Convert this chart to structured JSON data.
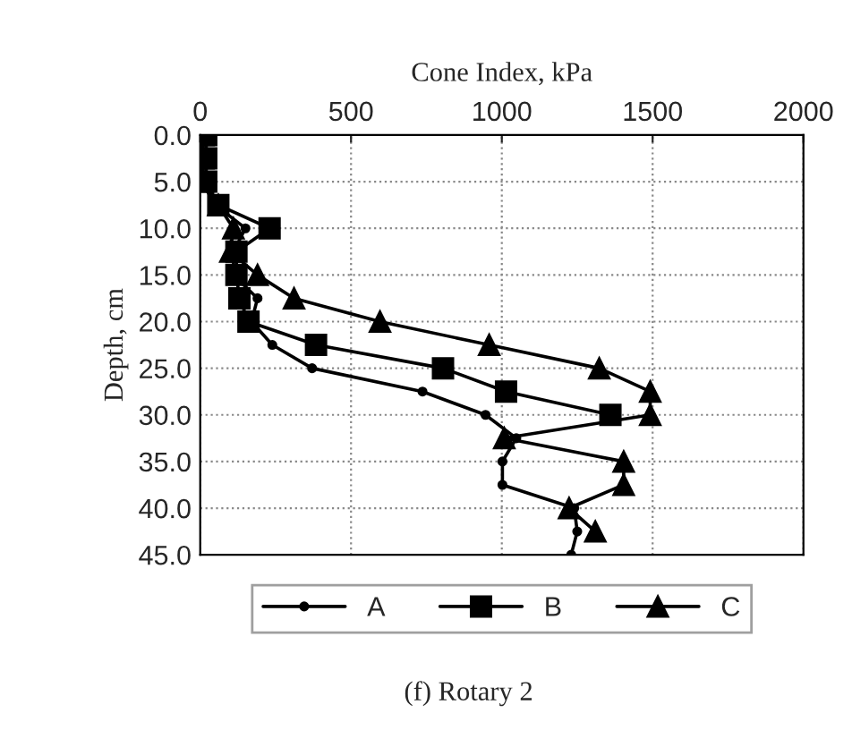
{
  "chart_data": {
    "type": "line",
    "xlabel": "Cone Index, kPa",
    "ylabel": "Depth, cm",
    "xlim": [
      0,
      2000
    ],
    "xticks": [
      0,
      500,
      1000,
      1500,
      2000
    ],
    "ylim": [
      45,
      0
    ],
    "yticks": [
      {
        "value": 0,
        "label": "0.0"
      },
      {
        "value": 5,
        "label": "5.0"
      },
      {
        "value": 10,
        "label": "10.0"
      },
      {
        "value": 15,
        "label": "15.0"
      },
      {
        "value": 20,
        "label": "20.0"
      },
      {
        "value": 25,
        "label": "25.0"
      },
      {
        "value": 30,
        "label": "30.0"
      },
      {
        "value": 35,
        "label": "35.0"
      },
      {
        "value": 40,
        "label": "40.0"
      },
      {
        "value": 45,
        "label": "45.0"
      }
    ],
    "grid": true,
    "legend": "bottom",
    "series": [
      {
        "name": "A",
        "color": "#000000",
        "marker": "circle",
        "x": [
          5,
          5,
          5,
          50,
          150,
          110,
          110,
          190,
          170,
          239,
          371,
          737,
          946,
          1048,
          1002,
          1002,
          1240,
          1250,
          1230
        ],
        "values": [
          0,
          2.5,
          5,
          7.5,
          10,
          12.5,
          15,
          17.5,
          20,
          22.5,
          25,
          27.5,
          30,
          32.5,
          35,
          37.5,
          40,
          42.5,
          45
        ]
      },
      {
        "name": "B",
        "color": "#000000",
        "marker": "square",
        "x": [
          20,
          20,
          20,
          60,
          230,
          120,
          120,
          130,
          160,
          384,
          805,
          1014,
          1360
        ],
        "values": [
          0,
          2.5,
          5,
          7.5,
          10,
          12.5,
          15,
          17.5,
          20,
          22.5,
          25,
          27.5,
          30
        ]
      },
      {
        "name": "C",
        "color": "#000000",
        "marker": "triangle",
        "x": [
          10,
          10,
          10,
          60,
          110,
          100,
          190,
          311,
          596,
          958,
          1323,
          1492,
          1492,
          1008,
          1404,
          1404,
          1223,
          1310
        ],
        "values": [
          0,
          2.5,
          5,
          7.5,
          10,
          12.5,
          15,
          17.5,
          20,
          22.5,
          25,
          27.5,
          30,
          32.5,
          35,
          37.5,
          40,
          42.5
        ]
      }
    ],
    "annotations": [
      "(f) Rotary 2"
    ]
  }
}
